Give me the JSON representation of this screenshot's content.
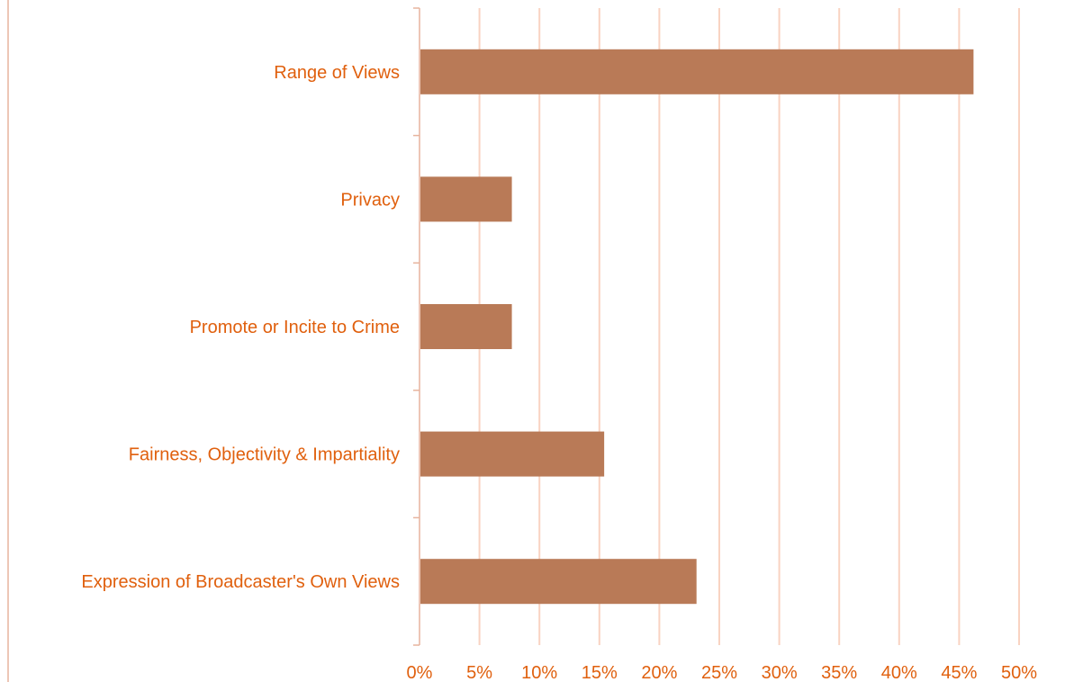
{
  "chart_data": {
    "type": "bar",
    "orientation": "horizontal",
    "categories": [
      "Range of Views",
      "Privacy",
      "Promote or Incite to Crime",
      "Fairness, Objectivity & Impartiality",
      "Expression of Broadcaster's Own Views"
    ],
    "values": [
      46.2,
      7.7,
      7.7,
      15.4,
      23.1
    ],
    "title": "",
    "xlabel": "",
    "ylabel": "",
    "xlim": [
      0,
      50
    ],
    "x_tick_labels": [
      "0%",
      "5%",
      "10%",
      "15%",
      "20%",
      "25%",
      "30%",
      "35%",
      "40%",
      "45%",
      "50%"
    ],
    "grid": true,
    "legend": "none",
    "colors": {
      "bar": "#B97A57",
      "text": "#E0600E",
      "gridline": "#F9D3C2",
      "axis": "#E7B49E"
    }
  }
}
